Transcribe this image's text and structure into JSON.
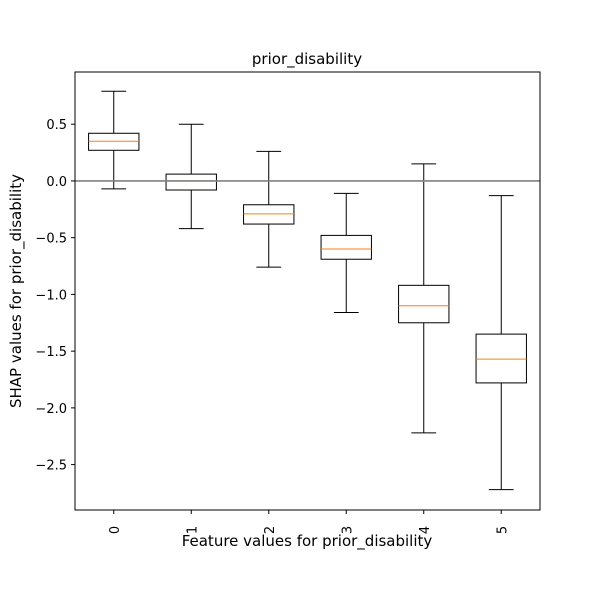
{
  "chart_data": {
    "type": "box",
    "title": "prior_disability",
    "xlabel": "Feature values for prior_disability",
    "ylabel": "SHAP values for prior_disability",
    "ylim": [
      -2.9,
      0.96
    ],
    "yticks": [
      -2.5,
      -2.0,
      -1.5,
      -1.0,
      -0.5,
      0.0,
      0.5
    ],
    "ytick_labels": [
      "−2.5",
      "−2.0",
      "−1.5",
      "−1.0",
      "−0.5",
      "0.0",
      "0.5"
    ],
    "categories": [
      "0",
      "1",
      "2",
      "3",
      "4",
      "5"
    ],
    "boxes": [
      {
        "label": "0",
        "whisker_low": -0.07,
        "q1": 0.27,
        "median": 0.35,
        "q3": 0.42,
        "whisker_high": 0.79
      },
      {
        "label": "1",
        "whisker_low": -0.42,
        "q1": -0.08,
        "median": 0.0,
        "q3": 0.06,
        "whisker_high": 0.5
      },
      {
        "label": "2",
        "whisker_low": -0.76,
        "q1": -0.38,
        "median": -0.29,
        "q3": -0.21,
        "whisker_high": 0.26
      },
      {
        "label": "3",
        "whisker_low": -1.16,
        "q1": -0.69,
        "median": -0.6,
        "q3": -0.48,
        "whisker_high": -0.11
      },
      {
        "label": "4",
        "whisker_low": -2.22,
        "q1": -1.25,
        "median": -1.1,
        "q3": -0.92,
        "whisker_high": 0.15
      },
      {
        "label": "5",
        "whisker_low": -2.72,
        "q1": -1.78,
        "median": -1.57,
        "q3": -1.35,
        "whisker_high": -0.13
      }
    ],
    "reference_line": 0.0,
    "grid": false,
    "colors": {
      "box": "#000000",
      "median": "#ff7f0e",
      "reference_line": "#808080"
    }
  }
}
